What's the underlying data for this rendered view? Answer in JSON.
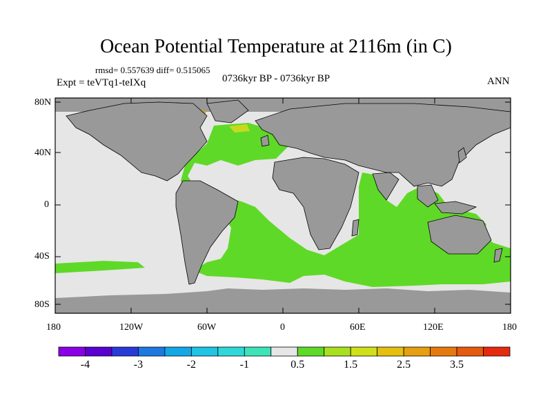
{
  "figure": {
    "title": "Ocean Potential Temperature at 2116m (in C)",
    "stats": "rmsd= 0.557639  diff= 0.515065",
    "experiment": "Expt = teVTq1-teIXq",
    "period": "0736kyr BP - 0736kyr BP",
    "season": "ANN"
  },
  "axes": {
    "lat_ticks": [
      "80N",
      "40N",
      "0",
      "40S",
      "80S"
    ],
    "lon_ticks": [
      "180",
      "120W",
      "60W",
      "0",
      "60E",
      "120E",
      "180"
    ]
  },
  "colorbar": {
    "colors": [
      "#8a00e6",
      "#5a00d0",
      "#2a3ad8",
      "#1e78e0",
      "#12a8e8",
      "#20c4e4",
      "#2ed8d8",
      "#3ce4b8",
      "#e6e6e6",
      "#5fd927",
      "#a8e020",
      "#cfe018",
      "#e6c010",
      "#e6a010",
      "#e67a10",
      "#e65a10",
      "#e62a10"
    ],
    "labels": [
      "-4",
      "-3",
      "-2",
      "-1",
      "0.5",
      "1.5",
      "2.5",
      "3.5"
    ]
  },
  "legend_colors": {
    "land": "#999999",
    "ocean_neutral": "#e6e6e6",
    "warm_anomaly": "#5fd927",
    "strong_warm": "#c8a020"
  }
}
